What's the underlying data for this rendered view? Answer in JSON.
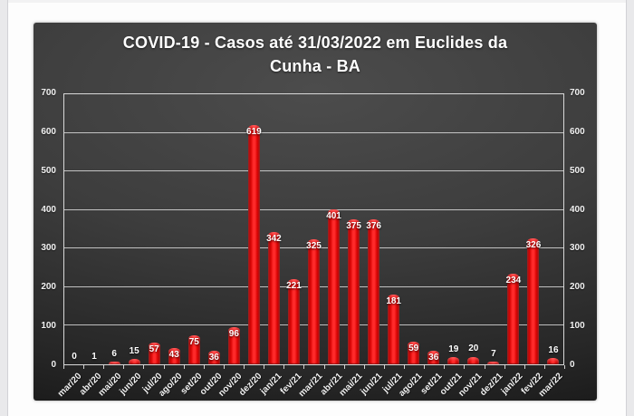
{
  "page": {
    "background": "#fdfdfd",
    "edge_color": "#e9e9eb"
  },
  "chart": {
    "title_lines": [
      "COVID-19 - Casos até 31/03/2022 em Euclides da",
      "Cunha - BA"
    ],
    "frame_background": "#2f2f2f",
    "text_color": "#ffffff",
    "gridline_color": "#e8e8e8",
    "bar_color": "#e60000"
  },
  "chart_data": {
    "type": "bar",
    "title": "COVID-19 - Casos até 31/03/2022 em Euclides da Cunha - BA",
    "categories": [
      "mar/20",
      "abr/20",
      "mai/20",
      "jun/20",
      "jul/20",
      "ago/20",
      "set/20",
      "out/20",
      "nov/20",
      "dez/20",
      "jan/21",
      "fev/21",
      "mar/21",
      "abr/21",
      "mai/21",
      "jun/21",
      "jul/21",
      "ago/21",
      "set/21",
      "out/21",
      "nov/21",
      "dez/21",
      "jan/22",
      "fev/22",
      "mar/22"
    ],
    "values": [
      0,
      1,
      6,
      15,
      57,
      43,
      75,
      36,
      96,
      619,
      342,
      221,
      325,
      401,
      375,
      376,
      181,
      59,
      36,
      19,
      20,
      7,
      234,
      326,
      16
    ],
    "xlabel": "",
    "ylabel": "",
    "ylim": [
      0,
      700
    ],
    "yticks": [
      0,
      100,
      200,
      300,
      400,
      500,
      600,
      700
    ],
    "grid": true,
    "legend": false,
    "value_labels": true,
    "bar_color": "#e60000"
  }
}
